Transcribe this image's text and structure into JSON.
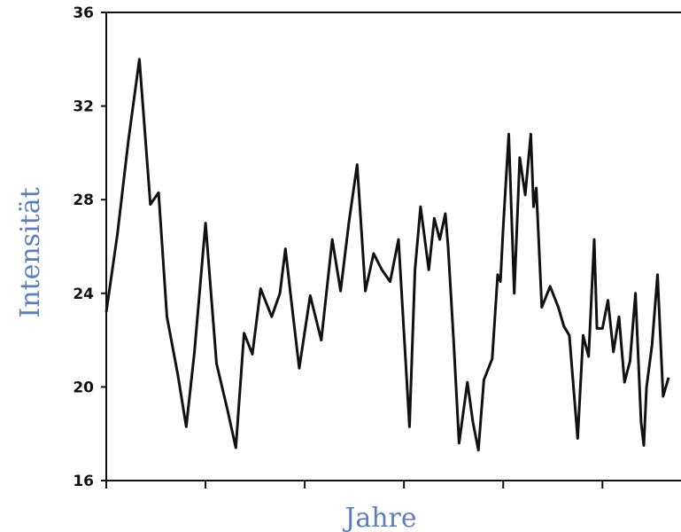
{
  "chart_data": {
    "type": "line",
    "title": "",
    "xlabel": "Jahre",
    "ylabel": "Intensität",
    "ylim": [
      16,
      36
    ],
    "yticks": [
      16,
      20,
      24,
      28,
      32,
      36
    ],
    "xlim": [
      0,
      102
    ],
    "xtick_positions": [
      0,
      18,
      36,
      54,
      72,
      90
    ],
    "xtick_labels": [
      "",
      "",
      "",
      "",
      "",
      ""
    ],
    "grid": false,
    "legend": "none",
    "colors": {
      "line": "#111111",
      "axis_title": "#5b7fbe"
    },
    "series": [
      {
        "x": [
          0,
          2,
          4,
          6,
          8,
          9.5,
          11,
          13,
          14.5,
          16,
          18,
          20,
          22,
          23.5,
          25,
          26.5,
          28,
          30,
          31.5,
          32.5,
          33.5,
          35,
          37,
          39,
          41,
          42.5,
          44,
          45.5,
          47,
          48.5,
          50,
          51.5,
          53,
          55,
          56,
          57,
          58.5,
          59.5,
          60.5,
          61.5,
          62,
          63,
          64,
          65.5,
          66.5,
          67.5,
          68.5,
          70,
          71,
          71.5,
          72,
          73,
          74,
          75,
          76,
          77,
          77.5,
          78,
          79,
          80.5,
          82,
          83,
          84,
          85.5,
          86.5,
          87.5,
          88.5,
          89,
          90,
          91,
          92,
          93,
          94,
          95,
          96,
          97,
          97.5,
          98,
          99,
          100,
          101,
          102
        ],
        "y": [
          23.2,
          26.5,
          30.5,
          34.0,
          27.8,
          28.3,
          23.0,
          20.5,
          18.3,
          21.5,
          27.0,
          21.0,
          19.0,
          17.4,
          22.3,
          21.4,
          24.2,
          23.0,
          24.0,
          25.9,
          23.8,
          20.8,
          23.9,
          22.0,
          26.3,
          24.1,
          27.0,
          29.5,
          24.1,
          25.7,
          25.0,
          24.5,
          26.3,
          18.3,
          25.0,
          27.7,
          25.0,
          27.2,
          26.3,
          27.4,
          26.0,
          22.0,
          17.6,
          20.2,
          18.5,
          17.3,
          20.3,
          21.2,
          24.8,
          24.5,
          26.8,
          30.8,
          24.0,
          29.8,
          28.2,
          30.8,
          27.7,
          28.5,
          23.4,
          24.3,
          23.4,
          22.6,
          22.2,
          17.8,
          22.2,
          21.3,
          26.3,
          22.5,
          22.5,
          23.7,
          21.5,
          23.0,
          20.2,
          21.1,
          24.0,
          18.5,
          17.5,
          20.0,
          21.8,
          24.8,
          19.6,
          20.4
        ]
      }
    ]
  }
}
